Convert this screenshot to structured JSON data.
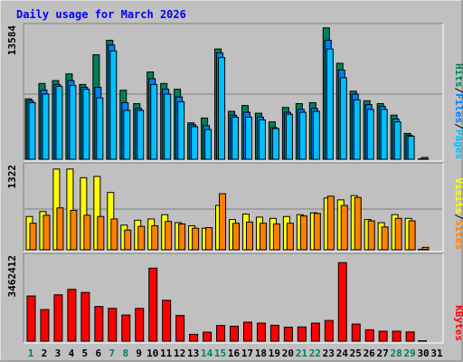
{
  "title": "Daily usage for March 2026",
  "colors": {
    "frame": "#c0c0c0",
    "plot_bg": "#c0c0c0",
    "hits": "#00805c",
    "files": "#0080ff",
    "pages": "#00c0ff",
    "visits": "#ffff00",
    "sites": "#ff8000",
    "kbytes": "#ff0000",
    "title": "#0000ff",
    "axis_text": "#000000",
    "weekend_label": "#00805c",
    "weekday_label": "#000000"
  },
  "chart_data": [
    {
      "type": "bar",
      "name": "hits-files-pages",
      "categories": [
        "1",
        "2",
        "3",
        "4",
        "5",
        "6",
        "7",
        "8",
        "9",
        "10",
        "11",
        "12",
        "13",
        "14",
        "15",
        "16",
        "17",
        "18",
        "19",
        "20",
        "21",
        "22",
        "23",
        "24",
        "25",
        "26",
        "27",
        "28",
        "29",
        "30",
        "31"
      ],
      "ymax_label": "13584",
      "ymax": 13584,
      "legend": [
        {
          "text": "Pages",
          "color": "#00c0ff"
        },
        {
          "text": "/",
          "color": "#000000"
        },
        {
          "text": "Files",
          "color": "#0080ff"
        },
        {
          "text": "/",
          "color": "#000000"
        },
        {
          "text": "Hits",
          "color": "#00805c"
        }
      ],
      "series": [
        {
          "name": "Hits",
          "values": [
            6300,
            7900,
            8200,
            8900,
            7800,
            10900,
            12400,
            7200,
            5800,
            9100,
            7900,
            7300,
            3800,
            4300,
            11500,
            5000,
            5600,
            4800,
            3900,
            5400,
            5800,
            5900,
            13700,
            10000,
            7100,
            6100,
            5800,
            4600,
            2700,
            0,
            0
          ]
        },
        {
          "name": "Files",
          "values": [
            6100,
            7200,
            7800,
            8200,
            7500,
            7500,
            11900,
            5900,
            5300,
            8400,
            7300,
            6500,
            3600,
            3500,
            11100,
            4600,
            4900,
            4400,
            3300,
            4900,
            5200,
            5300,
            12400,
            9300,
            6800,
            5700,
            5500,
            4200,
            2500,
            0,
            0
          ]
        },
        {
          "name": "Pages",
          "values": [
            5900,
            6800,
            7600,
            7700,
            7300,
            6400,
            11300,
            5100,
            5100,
            7800,
            6800,
            6000,
            3400,
            3100,
            10600,
            4400,
            4400,
            4100,
            3200,
            4700,
            4900,
            5000,
            11500,
            8500,
            6200,
            5200,
            5200,
            3900,
            2400,
            200,
            0
          ]
        }
      ]
    },
    {
      "type": "bar",
      "name": "visits-sites",
      "categories": [
        "1",
        "2",
        "3",
        "4",
        "5",
        "6",
        "7",
        "8",
        "9",
        "10",
        "11",
        "12",
        "13",
        "14",
        "15",
        "16",
        "17",
        "18",
        "19",
        "20",
        "21",
        "22",
        "23",
        "24",
        "25",
        "26",
        "27",
        "28",
        "29",
        "30",
        "31"
      ],
      "ymax_label": "1322",
      "ymax": 1322,
      "legend": [
        {
          "text": "Sites",
          "color": "#ff8000"
        },
        {
          "text": "/",
          "color": "#000000"
        },
        {
          "text": "Visits",
          "color": "#ffff00"
        }
      ],
      "series": [
        {
          "name": "Visits",
          "values": [
            540,
            620,
            1310,
            1310,
            1170,
            1190,
            930,
            400,
            480,
            500,
            570,
            440,
            390,
            350,
            720,
            490,
            580,
            530,
            510,
            540,
            570,
            600,
            840,
            810,
            880,
            490,
            440,
            570,
            510,
            0,
            0
          ]
        },
        {
          "name": "Sites",
          "values": [
            430,
            560,
            680,
            640,
            560,
            540,
            500,
            320,
            380,
            390,
            460,
            420,
            350,
            360,
            910,
            430,
            450,
            430,
            420,
            430,
            550,
            590,
            870,
            720,
            850,
            470,
            370,
            510,
            470,
            40,
            0
          ]
        }
      ]
    },
    {
      "type": "bar",
      "name": "kbytes",
      "categories": [
        "1",
        "2",
        "3",
        "4",
        "5",
        "6",
        "7",
        "8",
        "9",
        "10",
        "11",
        "12",
        "13",
        "14",
        "15",
        "16",
        "17",
        "18",
        "19",
        "20",
        "21",
        "22",
        "23",
        "24",
        "25",
        "26",
        "27",
        "28",
        "29",
        "30",
        "31"
      ],
      "ymax_label": "3462412",
      "ymax": 3462412,
      "legend": [
        {
          "text": "KBytes",
          "color": "#ff0000"
        }
      ],
      "series": [
        {
          "name": "KBytes",
          "values": [
            1900000,
            1330000,
            1950000,
            2180000,
            2050000,
            1460000,
            1380000,
            1100000,
            1380000,
            3070000,
            1720000,
            1080000,
            290000,
            380000,
            660000,
            630000,
            800000,
            760000,
            670000,
            590000,
            600000,
            760000,
            870000,
            3300000,
            720000,
            480000,
            420000,
            420000,
            390000,
            0,
            0
          ]
        }
      ]
    }
  ],
  "xaxis": {
    "labels": [
      "1",
      "2",
      "3",
      "4",
      "5",
      "6",
      "7",
      "8",
      "9",
      "10",
      "11",
      "12",
      "13",
      "14",
      "15",
      "16",
      "17",
      "18",
      "19",
      "20",
      "21",
      "22",
      "23",
      "24",
      "25",
      "26",
      "27",
      "28",
      "29",
      "30",
      "31"
    ],
    "weekend": [
      1,
      7,
      8,
      14,
      15,
      21,
      22,
      28,
      29
    ]
  }
}
